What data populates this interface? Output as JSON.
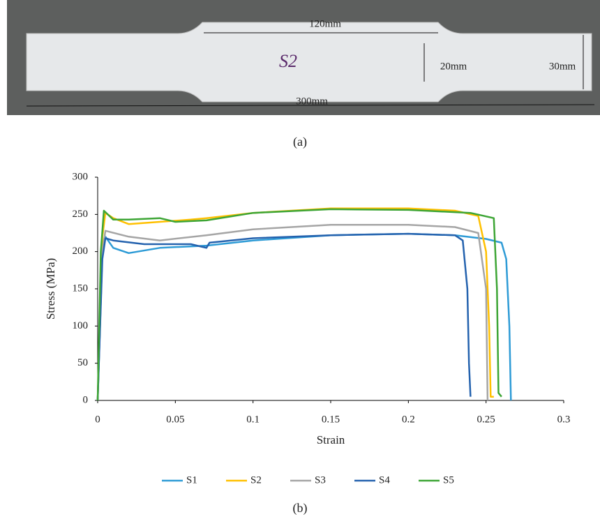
{
  "photo": {
    "specimen_id": "S2",
    "dimensions": [
      "120mm",
      "20mm",
      "30mm",
      "300mm"
    ],
    "caption": "(a)"
  },
  "chart_data": {
    "type": "line",
    "caption": "(b)",
    "x_label": "Strain",
    "y_label": "Stress (MPa)",
    "xlim": [
      0,
      0.3
    ],
    "xticks": [
      0,
      0.05,
      0.1,
      0.15,
      0.2,
      0.25,
      0.3
    ],
    "ylim": [
      0,
      300
    ],
    "yticks": [
      0,
      50,
      100,
      150,
      200,
      250,
      300
    ],
    "grid": false,
    "legend": "bottom",
    "series": [
      {
        "name": "S1",
        "color": "#2e9bd6",
        "x": [
          0,
          0.003,
          0.005,
          0.01,
          0.02,
          0.04,
          0.07,
          0.1,
          0.15,
          0.2,
          0.23,
          0.25,
          0.26,
          0.263,
          0.265,
          0.266
        ],
        "values": [
          0,
          200,
          220,
          205,
          198,
          205,
          208,
          215,
          222,
          224,
          222,
          217,
          212,
          190,
          100,
          0
        ]
      },
      {
        "name": "S2",
        "color": "#ffc000",
        "x": [
          0,
          0.003,
          0.005,
          0.01,
          0.02,
          0.04,
          0.06,
          0.07,
          0.1,
          0.15,
          0.2,
          0.23,
          0.245,
          0.25,
          0.252,
          0.253,
          0.255
        ],
        "values": [
          0,
          220,
          252,
          245,
          237,
          240,
          243,
          245,
          252,
          258,
          258,
          255,
          248,
          200,
          100,
          5,
          5
        ]
      },
      {
        "name": "S3",
        "color": "#a5a5a5",
        "x": [
          0,
          0.003,
          0.005,
          0.02,
          0.04,
          0.07,
          0.1,
          0.15,
          0.2,
          0.23,
          0.245,
          0.25,
          0.251
        ],
        "values": [
          0,
          200,
          228,
          220,
          215,
          222,
          230,
          236,
          236,
          233,
          225,
          150,
          0
        ]
      },
      {
        "name": "S4",
        "color": "#2462ae",
        "x": [
          0,
          0.003,
          0.005,
          0.01,
          0.03,
          0.06,
          0.07,
          0.072,
          0.1,
          0.15,
          0.2,
          0.23,
          0.235,
          0.238,
          0.239,
          0.24
        ],
        "values": [
          0,
          190,
          218,
          215,
          210,
          210,
          205,
          212,
          218,
          222,
          224,
          222,
          215,
          150,
          50,
          5
        ]
      },
      {
        "name": "S5",
        "color": "#3da535",
        "x": [
          0,
          0.002,
          0.004,
          0.01,
          0.02,
          0.04,
          0.05,
          0.07,
          0.1,
          0.15,
          0.2,
          0.24,
          0.255,
          0.257,
          0.258,
          0.26
        ],
        "values": [
          0,
          200,
          255,
          243,
          243,
          245,
          240,
          242,
          252,
          257,
          256,
          252,
          245,
          150,
          10,
          5
        ]
      }
    ]
  }
}
